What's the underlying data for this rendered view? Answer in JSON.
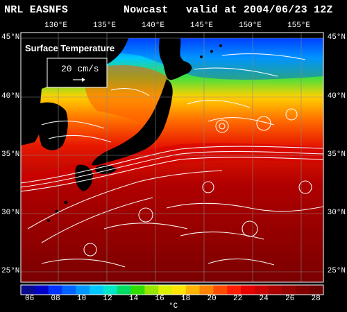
{
  "header": {
    "model": "NRL EASNFS",
    "product": "Nowcast",
    "valid": "valid at 2004/06/23 12Z"
  },
  "map": {
    "field_title": "Surface Temperature",
    "vector_reference": "20 cm/s",
    "lon_labels": [
      "130°E",
      "135°E",
      "140°E",
      "145°E",
      "150°E",
      "155°E"
    ],
    "lat_labels": [
      "45°N",
      "40°N",
      "35°N",
      "30°N",
      "25°N"
    ]
  },
  "colorbar": {
    "ticks": [
      "06",
      "08",
      "10",
      "12",
      "14",
      "16",
      "18",
      "20",
      "22",
      "24",
      "26",
      "28"
    ],
    "unit": "°C",
    "colors": [
      "#0a0a8c",
      "#0000c8",
      "#0032ff",
      "#0064ff",
      "#0096ff",
      "#00c8ff",
      "#00e6c8",
      "#00dc64",
      "#32dc00",
      "#96e600",
      "#dcf000",
      "#ffe600",
      "#ffb400",
      "#ff8200",
      "#ff4b00",
      "#ff1e00",
      "#e60000",
      "#c80000",
      "#aa0000",
      "#960000",
      "#820000",
      "#6e0000"
    ]
  }
}
